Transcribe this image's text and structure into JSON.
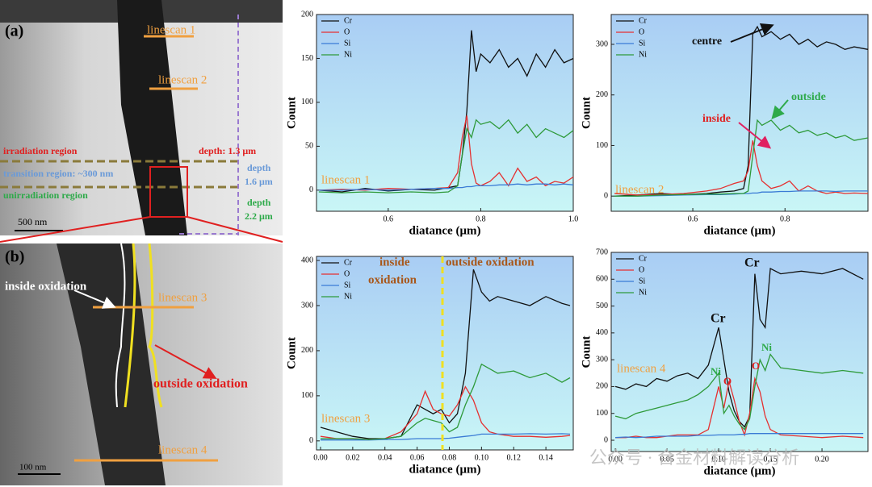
{
  "panels": {
    "a": {
      "label": "(a)",
      "linescan_1": "linescan 1",
      "linescan_2": "linescan 2",
      "irradiation": "irradiation region",
      "transition": "transition region: ~300 nm",
      "unirradiation": "unirradiation region",
      "depth_1": "depth: 1.3 μm",
      "depth_2": [
        "depth",
        "1.6 μm"
      ],
      "depth_3": [
        "depth",
        "2.2 μm"
      ],
      "scale": "500 nm"
    },
    "b": {
      "label": "(b)",
      "inside": "inside oxidation",
      "linescan_3": "linescan 3",
      "outside": "outside oxidation",
      "linescan_4": "linescan 4",
      "scale": "100 nm"
    }
  },
  "watermark": "公众号 · 合金材料解读分析",
  "chart_data": [
    {
      "type": "line",
      "xlabel": "diatance (μm)",
      "ylabel": "Count",
      "legend": "upper left",
      "xlim": [
        0.445,
        1.0
      ],
      "xticks": [
        0.6,
        0.8,
        {
          "value": 1,
          "label": "1.0"
        }
      ],
      "ylim": [
        -24,
        200
      ],
      "yticks": [
        0,
        50,
        100,
        150,
        200
      ],
      "x": [
        0.45,
        0.5,
        0.55,
        0.6,
        0.65,
        0.7,
        0.73,
        0.75,
        0.76,
        0.77,
        0.78,
        0.79,
        0.8,
        0.82,
        0.84,
        0.86,
        0.88,
        0.9,
        0.92,
        0.94,
        0.96,
        0.98,
        1.0
      ],
      "series": [
        {
          "name": "Cr",
          "color": "#111111",
          "values": [
            0,
            -2,
            2,
            -1,
            1,
            0,
            3,
            5,
            40,
            90,
            182,
            135,
            155,
            145,
            160,
            140,
            150,
            130,
            155,
            140,
            160,
            145,
            150
          ]
        },
        {
          "name": "O",
          "color": "#e53030",
          "values": [
            0,
            1,
            0,
            2,
            1,
            2,
            3,
            20,
            60,
            85,
            30,
            8,
            5,
            10,
            20,
            5,
            25,
            10,
            15,
            5,
            10,
            8,
            15
          ]
        },
        {
          "name": "Si",
          "color": "#3a7bd5",
          "values": [
            0,
            0,
            1,
            0,
            1,
            2,
            2,
            3,
            3,
            4,
            4,
            5,
            5,
            5,
            6,
            6,
            7,
            6,
            7,
            7,
            6,
            7,
            6
          ]
        },
        {
          "name": "Ni",
          "color": "#2e9a3a",
          "values": [
            -2,
            -3,
            -2,
            -3,
            -2,
            -3,
            -2,
            5,
            40,
            70,
            60,
            80,
            75,
            78,
            70,
            80,
            65,
            75,
            60,
            70,
            65,
            60,
            68
          ]
        }
      ],
      "annotations": [
        "linescan 1"
      ]
    },
    {
      "type": "line",
      "xlabel": "diatance (μm)",
      "ylabel": "Count",
      "legend": "upper left",
      "xlim": [
        0.423,
        0.98
      ],
      "xticks": [
        0.6,
        0.8
      ],
      "ylim": [
        -30,
        359
      ],
      "yticks": [
        0,
        100,
        200,
        300
      ],
      "x": [
        0.43,
        0.48,
        0.53,
        0.58,
        0.63,
        0.66,
        0.69,
        0.71,
        0.72,
        0.73,
        0.74,
        0.75,
        0.77,
        0.79,
        0.81,
        0.83,
        0.85,
        0.87,
        0.89,
        0.91,
        0.93,
        0.95,
        0.98
      ],
      "series": [
        {
          "name": "Cr",
          "color": "#111111",
          "values": [
            0,
            2,
            5,
            3,
            5,
            8,
            10,
            15,
            60,
            320,
            335,
            315,
            325,
            310,
            320,
            300,
            310,
            295,
            305,
            300,
            290,
            295,
            290
          ]
        },
        {
          "name": "O",
          "color": "#e53030",
          "values": [
            5,
            2,
            3,
            5,
            10,
            15,
            25,
            30,
            50,
            110,
            60,
            30,
            15,
            20,
            30,
            10,
            20,
            10,
            5,
            8,
            5,
            6,
            5
          ]
        },
        {
          "name": "Si",
          "color": "#3a7bd5",
          "values": [
            0,
            0,
            1,
            2,
            3,
            3,
            4,
            5,
            5,
            6,
            6,
            8,
            8,
            9,
            9,
            10,
            10,
            10,
            10,
            9,
            10,
            10,
            10
          ]
        },
        {
          "name": "Ni",
          "color": "#2e9a3a",
          "values": [
            0,
            0,
            2,
            3,
            4,
            4,
            5,
            5,
            10,
            80,
            150,
            140,
            150,
            130,
            140,
            125,
            130,
            120,
            125,
            115,
            120,
            110,
            115
          ]
        }
      ],
      "annotations": [
        "centre",
        "inside",
        "outside",
        "linescan 2"
      ]
    },
    {
      "type": "line",
      "xlabel": "diatance (μm)",
      "ylabel": "Count",
      "legend": "upper left",
      "xlim": [
        -0.0025,
        0.157
      ],
      "xticks": [
        {
          "value": 0,
          "label": "0.00"
        },
        {
          "value": 0.02,
          "label": "0.02"
        },
        {
          "value": 0.04,
          "label": "0.04"
        },
        {
          "value": 0.06,
          "label": "0.06"
        },
        {
          "value": 0.08,
          "label": "0.08"
        },
        {
          "value": 0.1,
          "label": "0.10"
        },
        {
          "value": 0.12,
          "label": "0.12"
        },
        {
          "value": 0.14,
          "label": "0.14"
        }
      ],
      "ylim": [
        -20,
        409
      ],
      "yticks": [
        0,
        100,
        200,
        300,
        400
      ],
      "x": [
        0,
        0.01,
        0.02,
        0.03,
        0.04,
        0.05,
        0.06,
        0.065,
        0.07,
        0.075,
        0.08,
        0.085,
        0.09,
        0.095,
        0.1,
        0.105,
        0.11,
        0.12,
        0.13,
        0.14,
        0.15,
        0.155
      ],
      "series": [
        {
          "name": "Cr",
          "color": "#111111",
          "values": [
            30,
            20,
            10,
            5,
            5,
            10,
            80,
            70,
            60,
            70,
            40,
            60,
            150,
            380,
            330,
            310,
            320,
            310,
            300,
            320,
            305,
            300
          ]
        },
        {
          "name": "O",
          "color": "#e53030",
          "values": [
            10,
            5,
            5,
            3,
            5,
            20,
            60,
            110,
            70,
            60,
            55,
            80,
            120,
            90,
            40,
            20,
            15,
            10,
            10,
            8,
            10,
            12
          ]
        },
        {
          "name": "Si",
          "color": "#3a7bd5",
          "values": [
            2,
            2,
            2,
            2,
            3,
            3,
            5,
            5,
            5,
            5,
            6,
            8,
            10,
            12,
            15,
            15,
            15,
            15,
            16,
            15,
            16,
            15
          ]
        },
        {
          "name": "Ni",
          "color": "#2e9a3a",
          "values": [
            5,
            5,
            5,
            3,
            5,
            10,
            40,
            50,
            45,
            40,
            20,
            30,
            80,
            120,
            170,
            160,
            150,
            155,
            140,
            150,
            130,
            140
          ]
        }
      ],
      "annotations": [
        "inside",
        "oxidation",
        "outside oxidation",
        "linescan 3"
      ]
    },
    {
      "type": "line",
      "xlabel": "diatance (μm)",
      "ylabel": "Count",
      "legend": "upper left",
      "xlim": [
        -0.004,
        0.2445
      ],
      "xticks": [
        {
          "value": 0,
          "label": "0.00"
        },
        {
          "value": 0.05,
          "label": "0.05"
        },
        {
          "value": 0.1,
          "label": "0.10"
        },
        {
          "value": 0.15,
          "label": "0.15"
        },
        {
          "value": 0.2,
          "label": "0.20"
        }
      ],
      "ylim": [
        -42,
        700
      ],
      "yticks": [
        0,
        100,
        200,
        300,
        400,
        500,
        600,
        700
      ],
      "x": [
        0,
        0.01,
        0.02,
        0.03,
        0.04,
        0.05,
        0.06,
        0.07,
        0.08,
        0.09,
        0.1,
        0.105,
        0.11,
        0.115,
        0.12,
        0.125,
        0.13,
        0.135,
        0.14,
        0.145,
        0.15,
        0.16,
        0.18,
        0.2,
        0.22,
        0.24
      ],
      "series": [
        {
          "name": "Cr",
          "color": "#111111",
          "values": [
            200,
            190,
            210,
            200,
            230,
            220,
            240,
            250,
            230,
            280,
            420,
            300,
            180,
            110,
            70,
            50,
            90,
            620,
            450,
            420,
            640,
            620,
            630,
            620,
            640,
            600
          ]
        },
        {
          "name": "O",
          "color": "#e53030",
          "values": [
            10,
            10,
            15,
            10,
            10,
            15,
            20,
            20,
            20,
            40,
            200,
            120,
            220,
            150,
            70,
            20,
            100,
            230,
            180,
            90,
            40,
            20,
            15,
            10,
            15,
            10
          ]
        },
        {
          "name": "Si",
          "color": "#3a7bd5",
          "values": [
            10,
            12,
            10,
            12,
            15,
            15,
            15,
            15,
            18,
            18,
            20,
            20,
            20,
            20,
            22,
            22,
            25,
            25,
            25,
            25,
            25,
            25,
            25,
            25,
            25,
            25
          ]
        },
        {
          "name": "Ni",
          "color": "#2e9a3a",
          "values": [
            90,
            80,
            100,
            110,
            120,
            130,
            140,
            150,
            170,
            200,
            250,
            100,
            130,
            90,
            60,
            40,
            80,
            200,
            300,
            260,
            320,
            270,
            260,
            250,
            260,
            250
          ]
        }
      ],
      "annotations": [
        "Cr",
        "Cr",
        "Ni",
        "Ni",
        "O",
        "O",
        "linescan 4"
      ]
    }
  ]
}
